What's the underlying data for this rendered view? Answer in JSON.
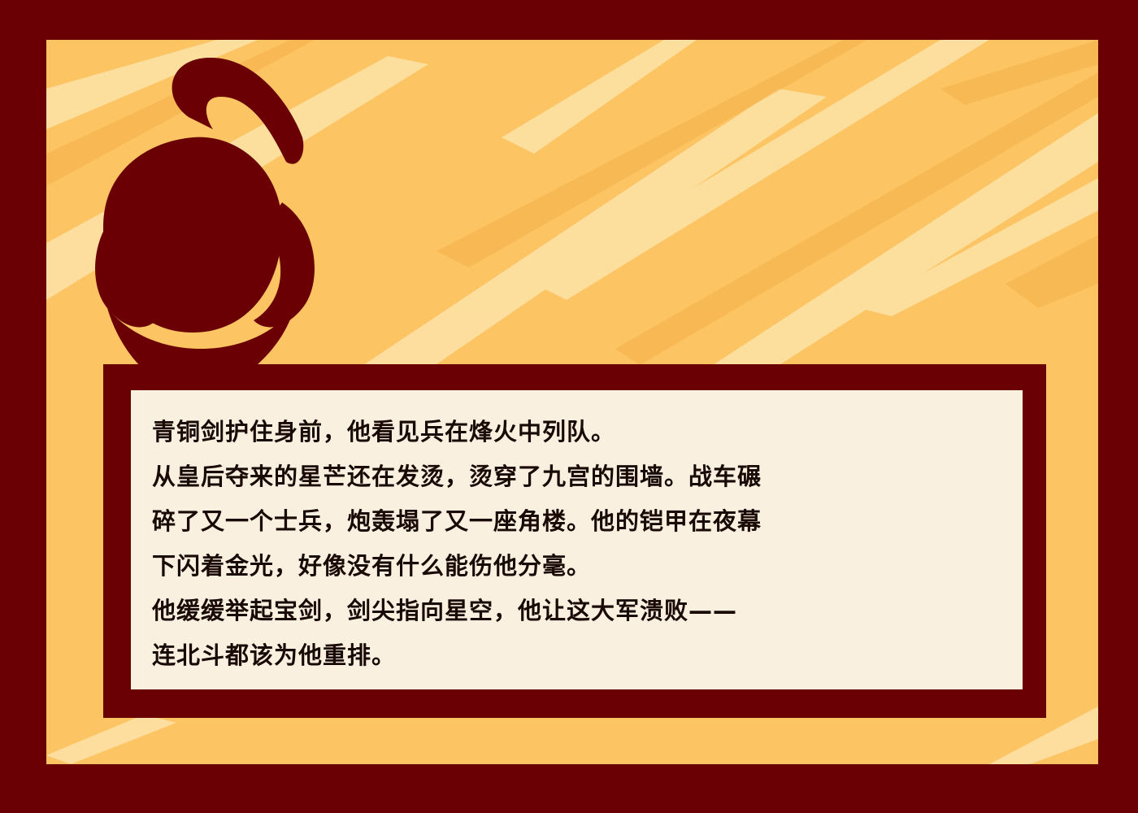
{
  "theme": {
    "border_color": "#6b0004",
    "backdrop_base": "#fcc463",
    "backdrop_streak_light": "#fde3a8",
    "backdrop_streak_dark": "#f6b54f",
    "helmet_color": "#6b0004",
    "dialog_bg": "#faf0df",
    "text_color": "#1a0a06"
  },
  "portrait": {
    "icon": "warrior-helmet-icon"
  },
  "dialog": {
    "lines": [
      "青铜剑护住身前，他看见兵在烽火中列队。",
      "从皇后夺来的星芒还在发烫，烫穿了九宫的围墙。战车碾",
      "碎了又一个士兵，炮轰塌了又一座角楼。他的铠甲在夜幕",
      "下闪着金光，好像没有什么能伤他分毫。",
      "他缓缓举起宝剑，剑尖指向星空，他让这大军溃败——",
      "连北斗都该为他重排。"
    ]
  }
}
